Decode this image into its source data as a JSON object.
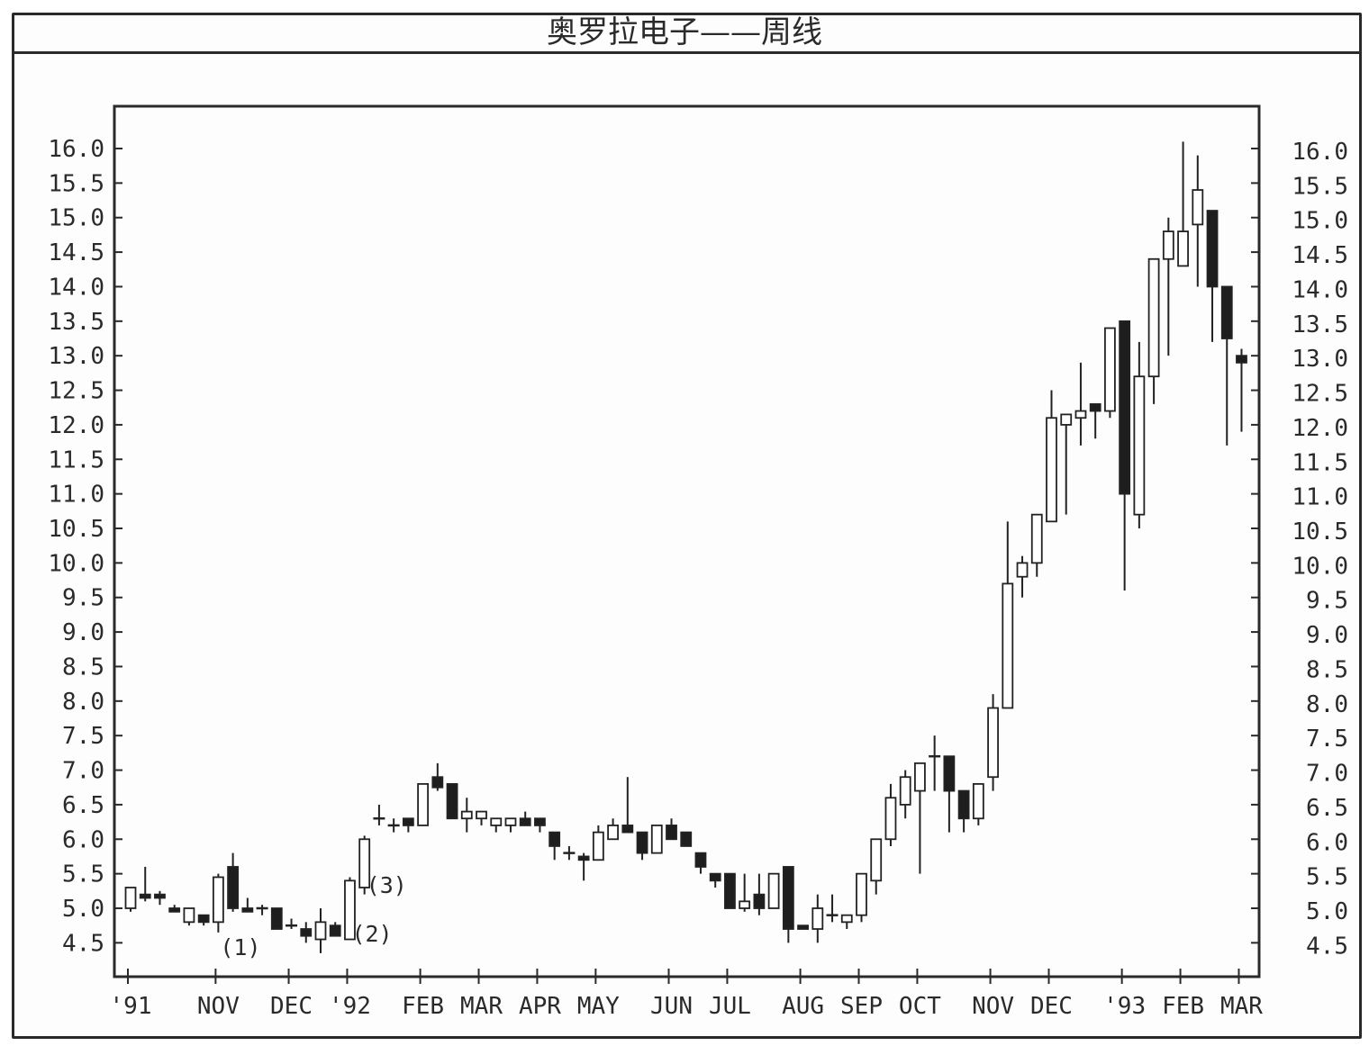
{
  "chart_title": "奥罗拉电子——周线",
  "chart_data": {
    "type": "candlestick",
    "title": "奥罗拉电子——周线",
    "ylim": [
      4.0,
      16.6
    ],
    "y_ticks": [
      4.5,
      5.0,
      5.5,
      6.0,
      6.5,
      7.0,
      7.5,
      8.0,
      8.5,
      9.0,
      9.5,
      10.0,
      10.5,
      11.0,
      11.5,
      12.0,
      12.5,
      13.0,
      13.5,
      14.0,
      14.5,
      15.0,
      15.5,
      16.0
    ],
    "y_tick_labels": [
      "4.5",
      "5.0",
      "5.5",
      "6.0",
      "6.5",
      "7.0",
      "7.5",
      "8.0",
      "8.5",
      "9.0",
      "9.5",
      "10.0",
      "10.5",
      "11.0",
      "11.5",
      "12.0",
      "12.5",
      "13.0",
      "13.5",
      "14.0",
      "14.5",
      "15.0",
      "15.5",
      "16.0"
    ],
    "grid": false,
    "x_labels": [
      {
        "label": "'91",
        "week": 0
      },
      {
        "label": "NOV",
        "week": 6
      },
      {
        "label": "DEC",
        "week": 11
      },
      {
        "label": "'92",
        "week": 15
      },
      {
        "label": "FEB",
        "week": 20
      },
      {
        "label": "MAR",
        "week": 24
      },
      {
        "label": "APR",
        "week": 28
      },
      {
        "label": "MAY",
        "week": 32
      },
      {
        "label": "JUN",
        "week": 37
      },
      {
        "label": "JUL",
        "week": 41
      },
      {
        "label": "AUG",
        "week": 46
      },
      {
        "label": "SEP",
        "week": 50
      },
      {
        "label": "OCT",
        "week": 54
      },
      {
        "label": "NOV",
        "week": 59
      },
      {
        "label": "DEC",
        "week": 63
      },
      {
        "label": "'93",
        "week": 68
      },
      {
        "label": "FEB",
        "week": 72
      },
      {
        "label": "MAR",
        "week": 76
      }
    ],
    "candles": [
      {
        "open": 5.0,
        "high": 5.3,
        "low": 4.95,
        "close": 5.3
      },
      {
        "open": 5.2,
        "high": 5.6,
        "low": 5.1,
        "close": 5.15
      },
      {
        "open": 5.2,
        "high": 5.25,
        "low": 5.05,
        "close": 5.15
      },
      {
        "open": 5.0,
        "high": 5.05,
        "low": 4.95,
        "close": 4.95
      },
      {
        "open": 4.8,
        "high": 5.0,
        "low": 4.75,
        "close": 5.0
      },
      {
        "open": 4.9,
        "high": 4.9,
        "low": 4.75,
        "close": 4.8
      },
      {
        "open": 4.8,
        "high": 5.5,
        "low": 4.65,
        "close": 5.45
      },
      {
        "open": 5.6,
        "high": 5.8,
        "low": 4.95,
        "close": 5.0
      },
      {
        "open": 5.0,
        "high": 5.15,
        "low": 4.95,
        "close": 4.95
      },
      {
        "open": 5.0,
        "high": 5.05,
        "low": 4.9,
        "close": 5.0
      },
      {
        "open": 5.0,
        "high": 5.0,
        "low": 4.7,
        "close": 4.7
      },
      {
        "open": 4.75,
        "high": 4.85,
        "low": 4.7,
        "close": 4.75
      },
      {
        "open": 4.7,
        "high": 4.8,
        "low": 4.5,
        "close": 4.6
      },
      {
        "open": 4.55,
        "high": 5.0,
        "low": 4.35,
        "close": 4.8
      },
      {
        "open": 4.75,
        "high": 4.8,
        "low": 4.6,
        "close": 4.6
      },
      {
        "open": 4.55,
        "high": 5.45,
        "low": 4.55,
        "close": 5.4
      },
      {
        "open": 5.3,
        "high": 6.05,
        "low": 5.2,
        "close": 6.0
      },
      {
        "open": 6.3,
        "high": 6.5,
        "low": 6.2,
        "close": 6.3
      },
      {
        "open": 6.2,
        "high": 6.3,
        "low": 6.1,
        "close": 6.2
      },
      {
        "open": 6.3,
        "high": 6.3,
        "low": 6.1,
        "close": 6.2
      },
      {
        "open": 6.2,
        "high": 6.8,
        "low": 6.2,
        "close": 6.8
      },
      {
        "open": 6.9,
        "high": 7.1,
        "low": 6.7,
        "close": 6.75
      },
      {
        "open": 6.8,
        "high": 6.8,
        "low": 6.3,
        "close": 6.3
      },
      {
        "open": 6.3,
        "high": 6.6,
        "low": 6.1,
        "close": 6.4
      },
      {
        "open": 6.3,
        "high": 6.4,
        "low": 6.2,
        "close": 6.4
      },
      {
        "open": 6.2,
        "high": 6.3,
        "low": 6.1,
        "close": 6.3
      },
      {
        "open": 6.2,
        "high": 6.3,
        "low": 6.1,
        "close": 6.3
      },
      {
        "open": 6.3,
        "high": 6.4,
        "low": 6.2,
        "close": 6.2
      },
      {
        "open": 6.3,
        "high": 6.3,
        "low": 6.1,
        "close": 6.2
      },
      {
        "open": 6.1,
        "high": 6.1,
        "low": 5.7,
        "close": 5.9
      },
      {
        "open": 5.8,
        "high": 5.9,
        "low": 5.7,
        "close": 5.8
      },
      {
        "open": 5.75,
        "high": 5.8,
        "low": 5.4,
        "close": 5.7
      },
      {
        "open": 5.7,
        "high": 6.2,
        "low": 5.7,
        "close": 6.1
      },
      {
        "open": 6.0,
        "high": 6.3,
        "low": 6.0,
        "close": 6.2
      },
      {
        "open": 6.2,
        "high": 6.9,
        "low": 6.1,
        "close": 6.1
      },
      {
        "open": 6.1,
        "high": 6.1,
        "low": 5.7,
        "close": 5.8
      },
      {
        "open": 5.8,
        "high": 6.2,
        "low": 5.8,
        "close": 6.2
      },
      {
        "open": 6.2,
        "high": 6.3,
        "low": 6.0,
        "close": 6.0
      },
      {
        "open": 6.1,
        "high": 6.1,
        "low": 5.9,
        "close": 5.9
      },
      {
        "open": 5.8,
        "high": 5.8,
        "low": 5.5,
        "close": 5.6
      },
      {
        "open": 5.5,
        "high": 5.5,
        "low": 5.3,
        "close": 5.4
      },
      {
        "open": 5.5,
        "high": 5.5,
        "low": 5.0,
        "close": 5.0
      },
      {
        "open": 5.0,
        "high": 5.5,
        "low": 4.95,
        "close": 5.1
      },
      {
        "open": 5.2,
        "high": 5.5,
        "low": 4.9,
        "close": 5.0
      },
      {
        "open": 5.0,
        "high": 5.5,
        "low": 5.0,
        "close": 5.5
      },
      {
        "open": 5.6,
        "high": 5.6,
        "low": 4.5,
        "close": 4.7
      },
      {
        "open": 4.75,
        "high": 4.75,
        "low": 4.7,
        "close": 4.7
      },
      {
        "open": 4.7,
        "high": 5.2,
        "low": 4.5,
        "close": 5.0
      },
      {
        "open": 4.9,
        "high": 5.2,
        "low": 4.8,
        "close": 4.9
      },
      {
        "open": 4.8,
        "high": 4.9,
        "low": 4.7,
        "close": 4.9
      },
      {
        "open": 4.9,
        "high": 5.5,
        "low": 4.8,
        "close": 5.5
      },
      {
        "open": 5.4,
        "high": 6.0,
        "low": 5.2,
        "close": 6.0
      },
      {
        "open": 6.0,
        "high": 6.8,
        "low": 5.9,
        "close": 6.6
      },
      {
        "open": 6.5,
        "high": 7.0,
        "low": 6.3,
        "close": 6.9
      },
      {
        "open": 6.7,
        "high": 7.1,
        "low": 5.5,
        "close": 7.1
      },
      {
        "open": 7.2,
        "high": 7.5,
        "low": 6.7,
        "close": 7.2
      },
      {
        "open": 7.2,
        "high": 7.2,
        "low": 6.1,
        "close": 6.7
      },
      {
        "open": 6.7,
        "high": 6.7,
        "low": 6.1,
        "close": 6.3
      },
      {
        "open": 6.3,
        "high": 6.8,
        "low": 6.2,
        "close": 6.8
      },
      {
        "open": 6.9,
        "high": 8.1,
        "low": 6.7,
        "close": 7.9
      },
      {
        "open": 7.9,
        "high": 10.6,
        "low": 7.9,
        "close": 9.7
      },
      {
        "open": 9.8,
        "high": 10.1,
        "low": 9.5,
        "close": 10.0
      },
      {
        "open": 10.0,
        "high": 10.7,
        "low": 9.8,
        "close": 10.7
      },
      {
        "open": 10.6,
        "high": 12.5,
        "low": 10.6,
        "close": 12.1
      },
      {
        "open": 12.0,
        "high": 12.15,
        "low": 10.7,
        "close": 12.15
      },
      {
        "open": 12.1,
        "high": 12.9,
        "low": 11.7,
        "close": 12.2
      },
      {
        "open": 12.3,
        "high": 12.3,
        "low": 11.8,
        "close": 12.2
      },
      {
        "open": 12.2,
        "high": 13.4,
        "low": 12.1,
        "close": 13.4
      },
      {
        "open": 13.5,
        "high": 13.5,
        "low": 9.6,
        "close": 11.0
      },
      {
        "open": 10.7,
        "high": 13.2,
        "low": 10.5,
        "close": 12.7
      },
      {
        "open": 12.7,
        "high": 14.4,
        "low": 12.3,
        "close": 14.4
      },
      {
        "open": 14.4,
        "high": 15.0,
        "low": 13.0,
        "close": 14.8
      },
      {
        "open": 14.3,
        "high": 16.1,
        "low": 14.3,
        "close": 14.8
      },
      {
        "open": 14.9,
        "high": 15.9,
        "low": 14.0,
        "close": 15.4
      },
      {
        "open": 15.1,
        "high": 15.1,
        "low": 13.2,
        "close": 14.0
      },
      {
        "open": 14.0,
        "high": 14.0,
        "low": 11.7,
        "close": 13.25
      },
      {
        "open": 13.0,
        "high": 13.1,
        "low": 11.9,
        "close": 12.9
      }
    ],
    "annotations": [
      {
        "text": "(1)",
        "week": 6,
        "price": 4.45
      },
      {
        "text": "(2)",
        "week": 15,
        "price": 4.65
      },
      {
        "text": "(3)",
        "week": 16,
        "price": 5.35
      }
    ]
  }
}
